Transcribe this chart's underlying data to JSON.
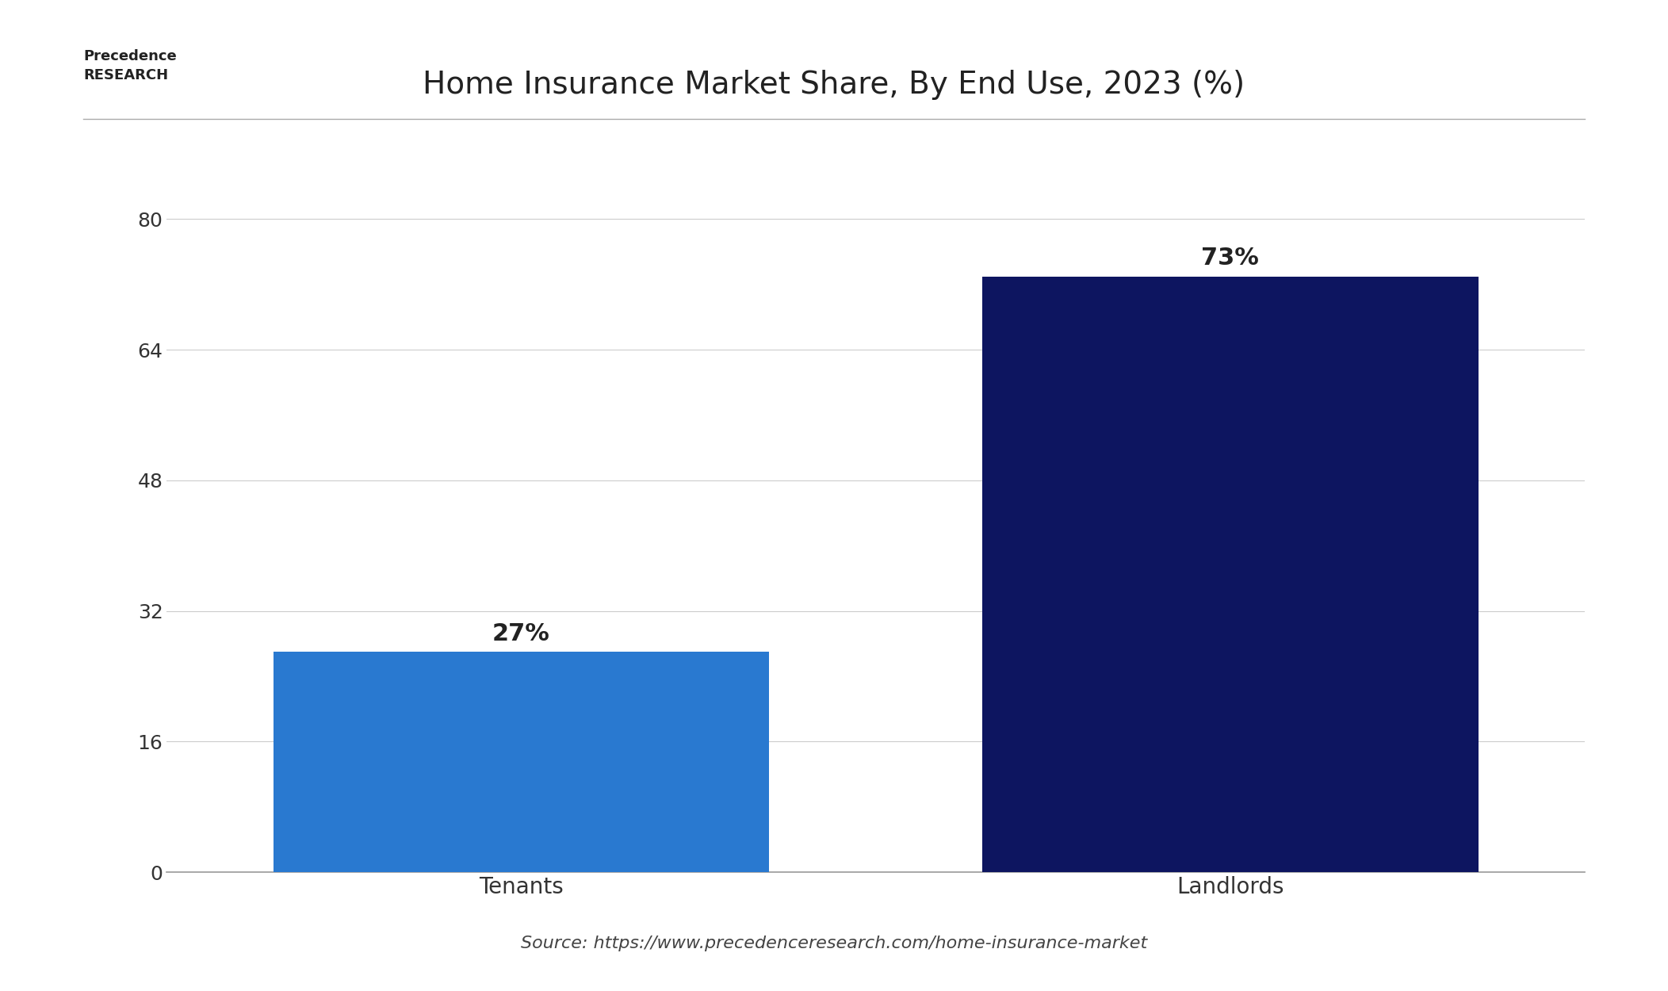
{
  "title": "Home Insurance Market Share, By End Use, 2023 (%)",
  "categories": [
    "Tenants",
    "Landlords"
  ],
  "values": [
    27,
    73
  ],
  "bar_colors": [
    "#2979D0",
    "#0D1560"
  ],
  "label_texts": [
    "27%",
    "73%"
  ],
  "yticks": [
    0,
    16,
    32,
    48,
    64,
    80
  ],
  "ylim": [
    0,
    85
  ],
  "background_color": "#ffffff",
  "plot_bg_color": "#ffffff",
  "source_text": "Source: https://www.precedenceresearch.com/home-insurance-market",
  "title_fontsize": 28,
  "label_fontsize": 22,
  "tick_fontsize": 18,
  "source_fontsize": 16,
  "bar_width": 0.35,
  "grid_color": "#cccccc",
  "axis_line_color": "#999999"
}
